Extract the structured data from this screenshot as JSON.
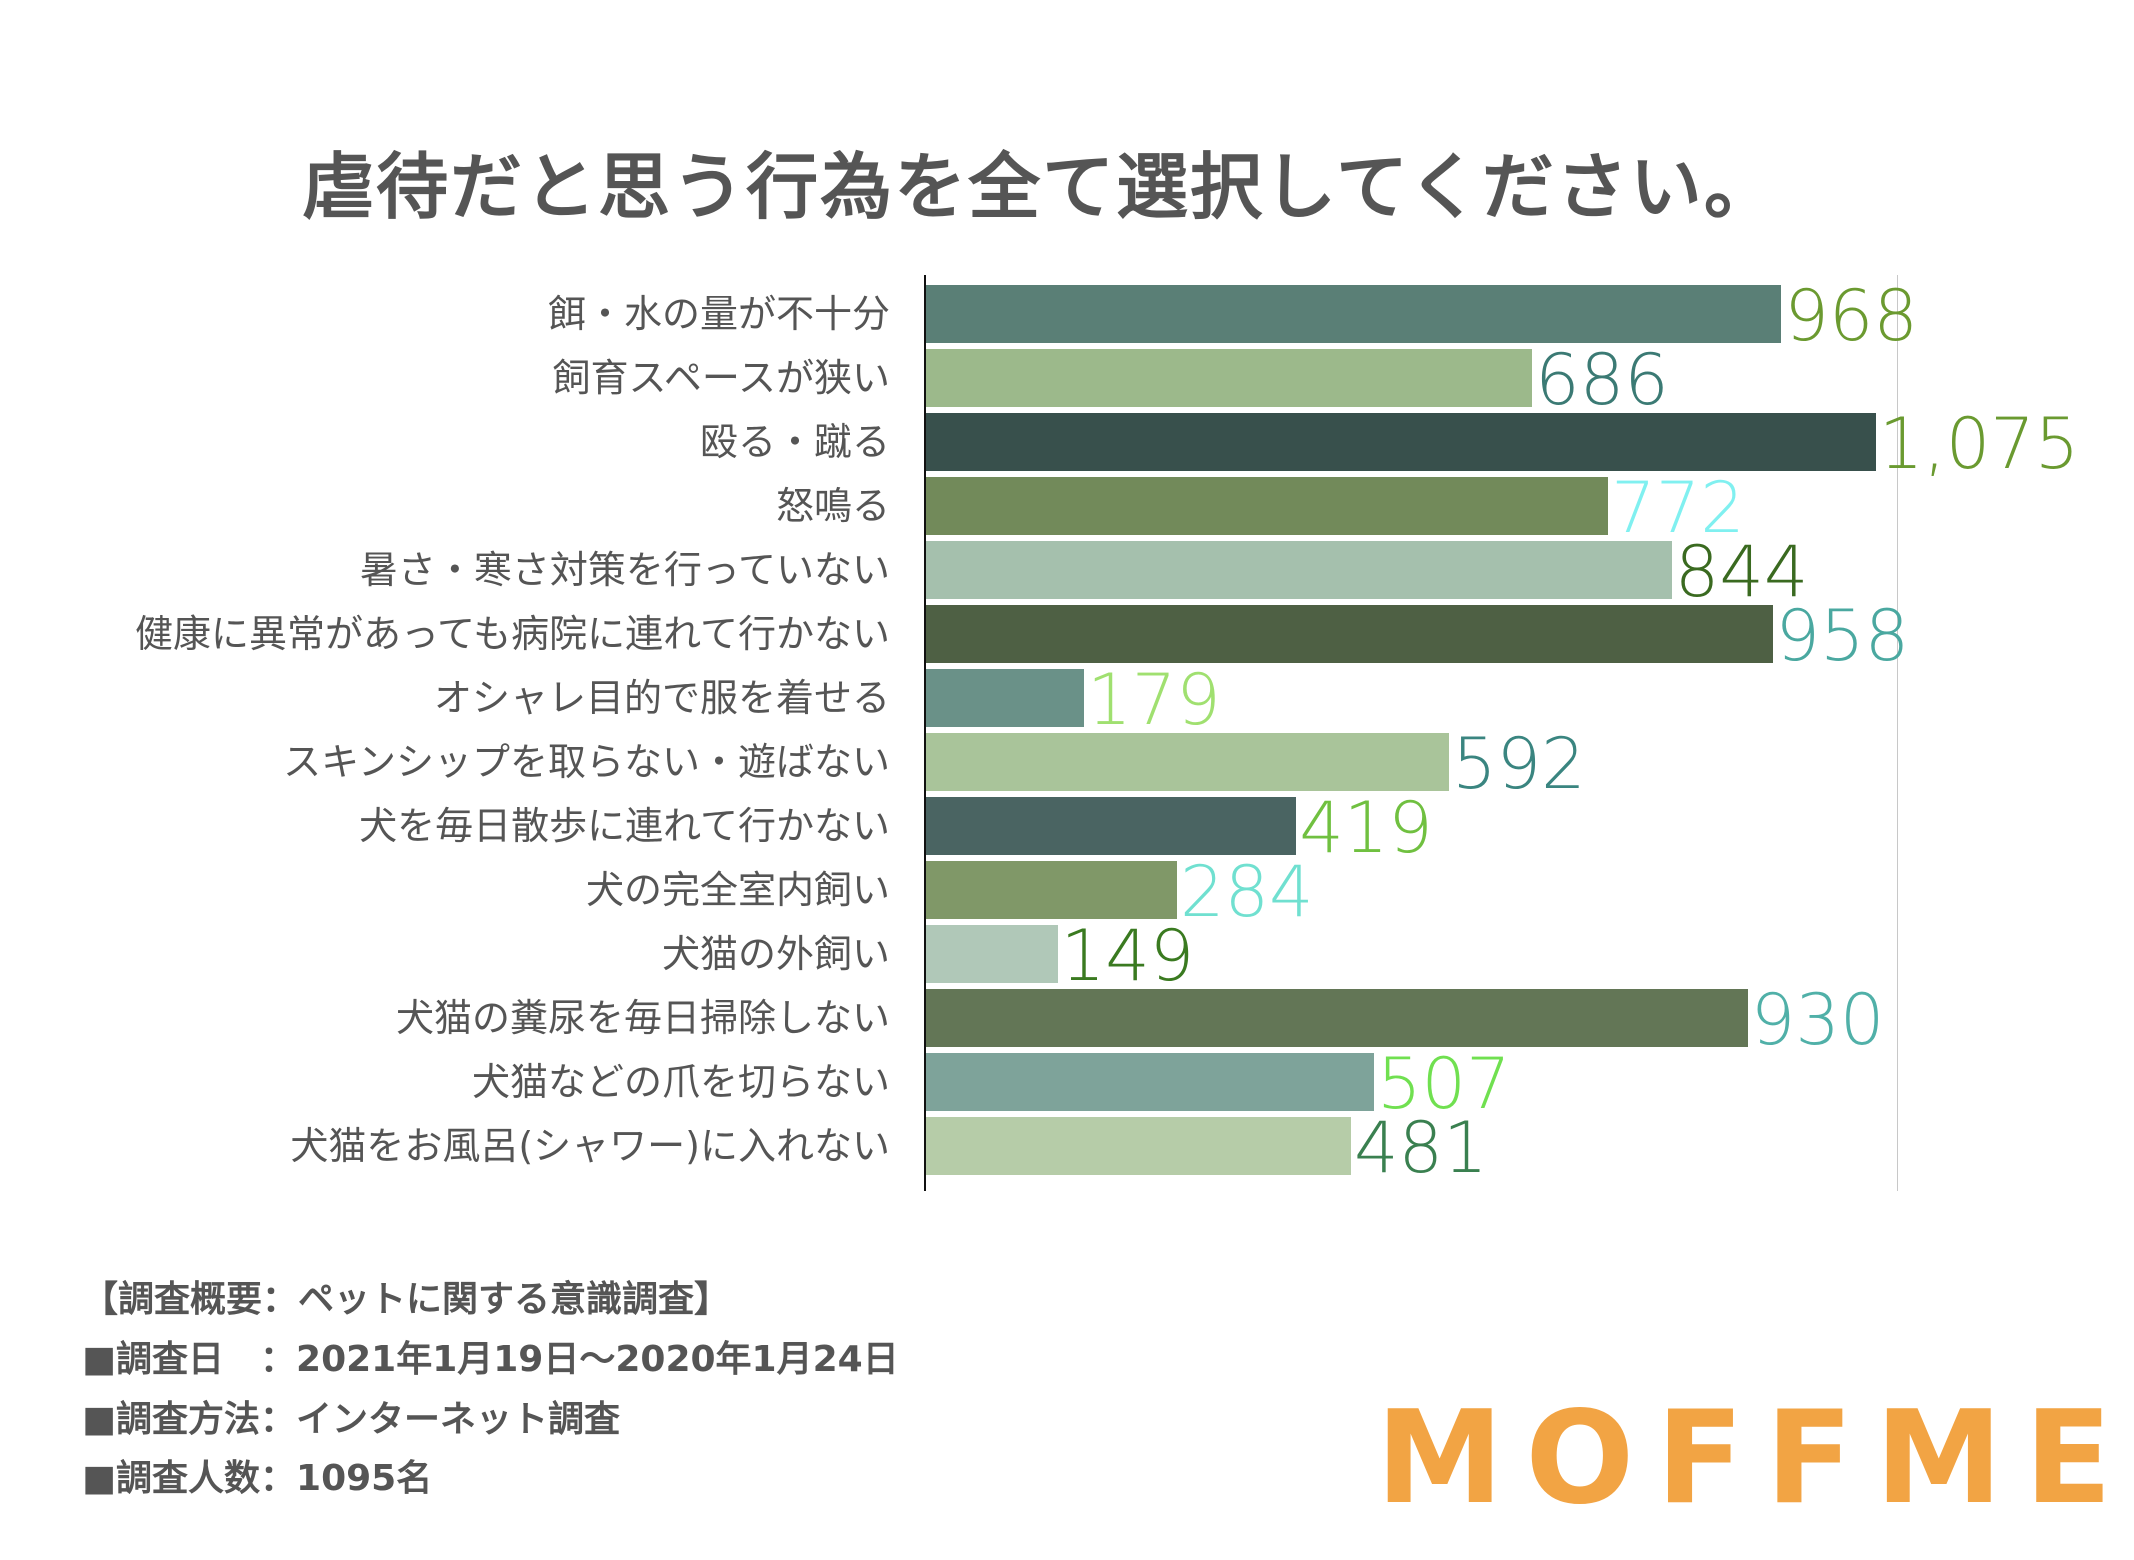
{
  "chart_data": {
    "type": "bar",
    "orientation": "horizontal",
    "title": "虐待だと思う行為を全て選択してください。",
    "categories": [
      "餌・水の量が不十分",
      "飼育スペースが狭い",
      "殴る・蹴る",
      "怒鳴る",
      "暑さ・寒さ対策を行っていない",
      "健康に異常があっても病院に連れて行かない",
      "オシャレ目的で服を着せる",
      "スキンシップを取らない・遊ばない",
      "犬を毎日散歩に連れて行かない",
      "犬の完全室内飼い",
      "犬猫の外飼い",
      "犬猫の糞尿を毎日掃除しない",
      "犬猫などの爪を切らない",
      "犬猫をお風呂(シャワー)に入れない"
    ],
    "values": [
      968,
      686,
      1075,
      772,
      844,
      958,
      179,
      592,
      419,
      284,
      149,
      930,
      507,
      481
    ],
    "value_labels": [
      "968",
      "686",
      "1,075",
      "772",
      "844",
      "958",
      "179",
      "592",
      "419",
      "284",
      "149",
      "930",
      "507",
      "481"
    ],
    "bar_colors": [
      "#5a7f76",
      "#9cb98b",
      "#38504c",
      "#728a5a",
      "#a5c0ad",
      "#4e6044",
      "#6a9188",
      "#a9c49a",
      "#4a6462",
      "#809868",
      "#b0c8b8",
      "#637656",
      "#7ea39a",
      "#b6cca8"
    ],
    "label_colors": [
      "#6b9a30",
      "#3b7a74",
      "#6a9a30",
      "#80f0f0",
      "#3a6a20",
      "#4aa8a0",
      "#a0e070",
      "#3a8580",
      "#70c040",
      "#70e0d0",
      "#3a7a20",
      "#50b0a8",
      "#70e050",
      "#3a8050"
    ],
    "xlim": [
      0,
      1100
    ],
    "grid": "single vertical line at 1100",
    "legend": "none"
  },
  "footer": {
    "lines": [
      "【調査概要：ペットに関する意識調査】",
      "■調査日　：2021年1月19日〜2020年1月24日",
      "■調査方法：インターネット調査",
      "■調査人数：1095名"
    ]
  },
  "logo": {
    "text": "MOFFME",
    "color": "#f2a444"
  }
}
